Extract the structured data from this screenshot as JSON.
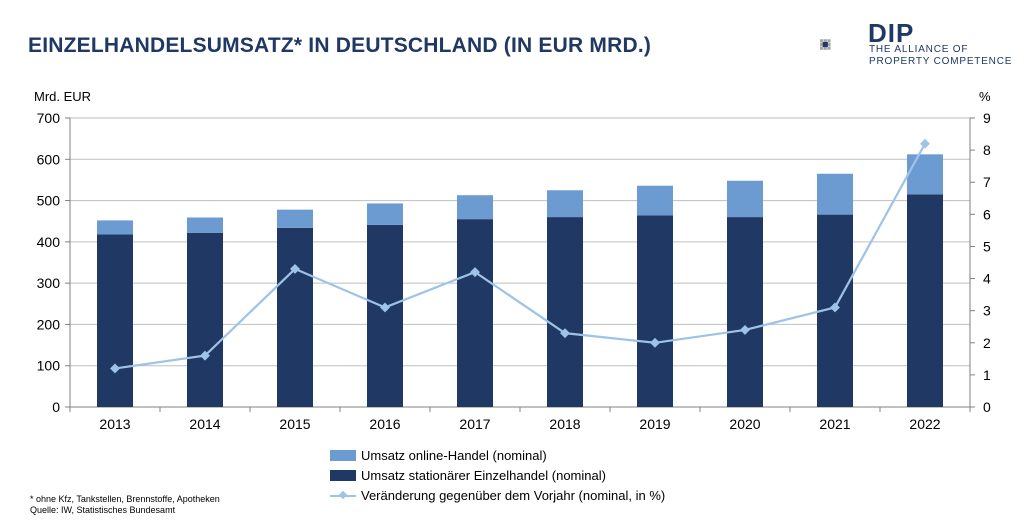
{
  "header": {
    "title": "EINZELHANDELSUMSATZ* IN DEUTSCHLAND (IN EUR MRD.)"
  },
  "logo": {
    "name": "DIP",
    "tagline_line1": "THE ALLIANCE OF",
    "tagline_line2": "PROPERTY COMPETENCE",
    "colors": {
      "dark": "#1f3864",
      "grey": "#a6a6a6"
    }
  },
  "axes": {
    "left_unit": "Mrd. EUR",
    "right_unit": "%"
  },
  "legend": {
    "online": "Umsatz online-Handel (nominal)",
    "stationary": "Umsatz stationärer Einzelhandel (nominal)",
    "change": "Veränderung gegenüber dem Vorjahr (nominal, in %)"
  },
  "footnote": {
    "line1": "* ohne Kfz, Tankstellen, Brennstoffe, Apotheken",
    "line2": "Quelle: IW, Statistisches Bundesamt"
  },
  "chart_data": {
    "type": "bar",
    "stacked": true,
    "categories": [
      "2013",
      "2014",
      "2015",
      "2016",
      "2017",
      "2018",
      "2019",
      "2020",
      "2021",
      "2022"
    ],
    "series": [
      {
        "name": "Umsatz stationärer Einzelhandel (nominal)",
        "color": "#1f3864",
        "values": [
          418,
          422,
          434,
          441,
          455,
          460,
          464,
          460,
          466,
          515
        ]
      },
      {
        "name": "Umsatz online-Handel (nominal)",
        "color": "#6b9bd1",
        "values": [
          34,
          37,
          44,
          52,
          58,
          65,
          72,
          88,
          99,
          97
        ]
      }
    ],
    "line_series": {
      "name": "Veränderung gegenüber dem Vorjahr (nominal, in %)",
      "color": "#9ec3e6",
      "axis": "right",
      "values": [
        1.2,
        1.6,
        4.3,
        3.1,
        4.2,
        2.3,
        2.0,
        2.4,
        3.1,
        8.2
      ]
    },
    "ylabel": "Mrd. EUR",
    "y2label": "%",
    "ylim": [
      0,
      700
    ],
    "y2lim": [
      0,
      9
    ],
    "yticks": [
      0,
      100,
      200,
      300,
      400,
      500,
      600,
      700
    ],
    "y2ticks": [
      0,
      1,
      2,
      3,
      4,
      5,
      6,
      7,
      8,
      9
    ],
    "grid": true
  }
}
